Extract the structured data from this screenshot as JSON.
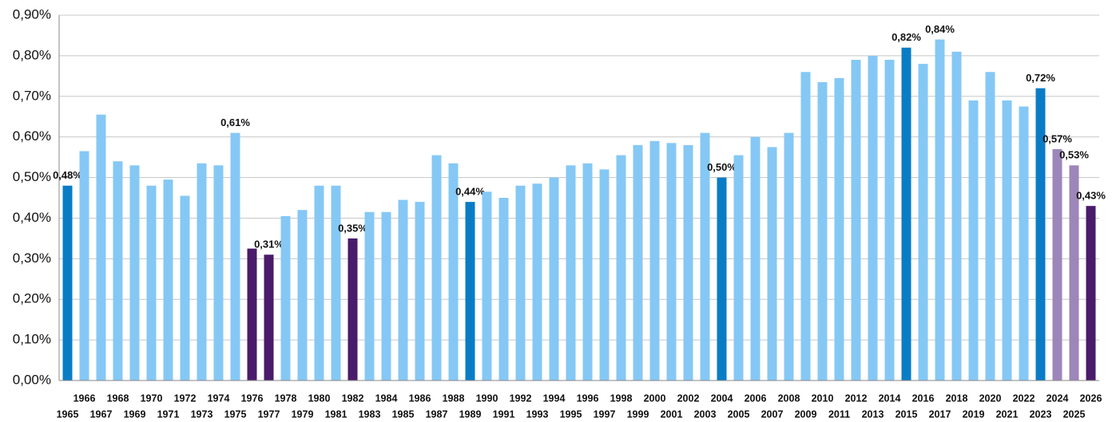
{
  "chart_data": {
    "type": "bar",
    "categories": [
      "1965",
      "1966",
      "1967",
      "1968",
      "1969",
      "1970",
      "1971",
      "1972",
      "1973",
      "1974",
      "1975",
      "1976",
      "1977",
      "1978",
      "1979",
      "1980",
      "1981",
      "1982",
      "1983",
      "1984",
      "1985",
      "1986",
      "1987",
      "1988",
      "1989",
      "1990",
      "1991",
      "1992",
      "1993",
      "1994",
      "1995",
      "1996",
      "1997",
      "1998",
      "1999",
      "2000",
      "2001",
      "2002",
      "2003",
      "2004",
      "2005",
      "2006",
      "2007",
      "2008",
      "2009",
      "2010",
      "2011",
      "2012",
      "2013",
      "2014",
      "2015",
      "2016",
      "2017",
      "2018",
      "2019",
      "2020",
      "2021",
      "2022",
      "2023",
      "2024",
      "2025",
      "2026"
    ],
    "values": [
      0.48,
      0.565,
      0.655,
      0.54,
      0.53,
      0.48,
      0.495,
      0.455,
      0.535,
      0.53,
      0.61,
      0.325,
      0.31,
      0.405,
      0.42,
      0.48,
      0.48,
      0.35,
      0.415,
      0.415,
      0.445,
      0.44,
      0.555,
      0.535,
      0.44,
      0.465,
      0.45,
      0.48,
      0.485,
      0.5,
      0.53,
      0.535,
      0.52,
      0.555,
      0.58,
      0.59,
      0.585,
      0.58,
      0.61,
      0.5,
      0.555,
      0.6,
      0.575,
      0.61,
      0.76,
      0.735,
      0.745,
      0.79,
      0.8,
      0.79,
      0.82,
      0.78,
      0.84,
      0.81,
      0.69,
      0.76,
      0.69,
      0.675,
      0.72,
      0.57,
      0.53,
      0.43
    ],
    "value_labels": [
      "0,48%",
      null,
      null,
      null,
      null,
      null,
      null,
      null,
      null,
      null,
      "0,61%",
      null,
      "0,31%",
      null,
      null,
      null,
      null,
      "0,35%",
      null,
      null,
      null,
      null,
      null,
      null,
      "0,44%",
      null,
      null,
      null,
      null,
      null,
      null,
      null,
      null,
      null,
      null,
      null,
      null,
      null,
      null,
      "0,50%",
      null,
      null,
      null,
      null,
      null,
      null,
      null,
      null,
      null,
      null,
      "0,82%",
      null,
      "0,84%",
      null,
      null,
      null,
      null,
      null,
      "0,72%",
      "0,57%",
      "0,53%",
      "0,43%"
    ],
    "colors": [
      "#0a7cc6",
      "#85c8f5",
      "#85c8f5",
      "#85c8f5",
      "#85c8f5",
      "#85c8f5",
      "#85c8f5",
      "#85c8f5",
      "#85c8f5",
      "#85c8f5",
      "#85c8f5",
      "#4a1b6b",
      "#4a1b6b",
      "#85c8f5",
      "#85c8f5",
      "#85c8f5",
      "#85c8f5",
      "#4a1b6b",
      "#85c8f5",
      "#85c8f5",
      "#85c8f5",
      "#85c8f5",
      "#85c8f5",
      "#85c8f5",
      "#0a7cc6",
      "#85c8f5",
      "#85c8f5",
      "#85c8f5",
      "#85c8f5",
      "#85c8f5",
      "#85c8f5",
      "#85c8f5",
      "#85c8f5",
      "#85c8f5",
      "#85c8f5",
      "#85c8f5",
      "#85c8f5",
      "#85c8f5",
      "#85c8f5",
      "#0a7cc6",
      "#85c8f5",
      "#85c8f5",
      "#85c8f5",
      "#85c8f5",
      "#85c8f5",
      "#85c8f5",
      "#85c8f5",
      "#85c8f5",
      "#85c8f5",
      "#85c8f5",
      "#0a7cc6",
      "#85c8f5",
      "#85c8f5",
      "#85c8f5",
      "#85c8f5",
      "#85c8f5",
      "#85c8f5",
      "#85c8f5",
      "#0a7cc6",
      "#9d86ba",
      "#9d86ba",
      "#4a1b6b"
    ],
    "ylim": [
      0,
      0.9
    ],
    "yticks": [
      {
        "value": 0,
        "label": "0,00%"
      },
      {
        "value": 0.1,
        "label": "0,10%"
      },
      {
        "value": 0.2,
        "label": "0,20%"
      },
      {
        "value": 0.3,
        "label": "0,30%"
      },
      {
        "value": 0.4,
        "label": "0,40%"
      },
      {
        "value": 0.5,
        "label": "0,50%"
      },
      {
        "value": 0.6,
        "label": "0,60%"
      },
      {
        "value": 0.7,
        "label": "0,70%"
      },
      {
        "value": 0.8,
        "label": "0,80%"
      },
      {
        "value": 0.9,
        "label": "0,90%"
      }
    ],
    "grid": true
  }
}
